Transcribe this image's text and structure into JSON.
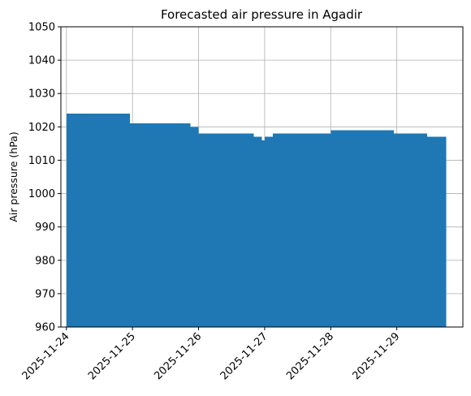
{
  "chart_data": {
    "type": "bar",
    "title": "Forecasted air pressure in Agadir",
    "xlabel": "",
    "ylabel": "Air pressure (hPa)",
    "ylim": [
      960,
      1050
    ],
    "yticks": [
      960,
      970,
      980,
      990,
      1000,
      1010,
      1020,
      1030,
      1040,
      1050
    ],
    "xticks": [
      "2025-11-24",
      "2025-11-25",
      "2025-11-26",
      "2025-11-27",
      "2025-11-28",
      "2025-11-29"
    ],
    "xlim": [
      "2025-11-23T22:00",
      "2025-11-30T00:00"
    ],
    "grid": true,
    "bar_color": "#1f77b4",
    "bars": [
      {
        "start": "2025-11-24T00:00",
        "end": "2025-11-24T23:00",
        "value": 1024
      },
      {
        "start": "2025-11-24T23:00",
        "end": "2025-11-25T21:00",
        "value": 1021
      },
      {
        "start": "2025-11-25T21:00",
        "end": "2025-11-26T00:00",
        "value": 1020
      },
      {
        "start": "2025-11-26T00:00",
        "end": "2025-11-26T20:00",
        "value": 1018
      },
      {
        "start": "2025-11-26T20:00",
        "end": "2025-11-26T23:00",
        "value": 1017
      },
      {
        "start": "2025-11-26T23:00",
        "end": "2025-11-27T00:00",
        "value": 1016
      },
      {
        "start": "2025-11-27T00:00",
        "end": "2025-11-27T03:00",
        "value": 1017
      },
      {
        "start": "2025-11-27T03:00",
        "end": "2025-11-28T00:00",
        "value": 1018
      },
      {
        "start": "2025-11-28T00:00",
        "end": "2025-11-28T23:00",
        "value": 1019
      },
      {
        "start": "2025-11-28T23:00",
        "end": "2025-11-29T11:00",
        "value": 1018
      },
      {
        "start": "2025-11-29T11:00",
        "end": "2025-11-29T18:00",
        "value": 1017
      }
    ]
  }
}
